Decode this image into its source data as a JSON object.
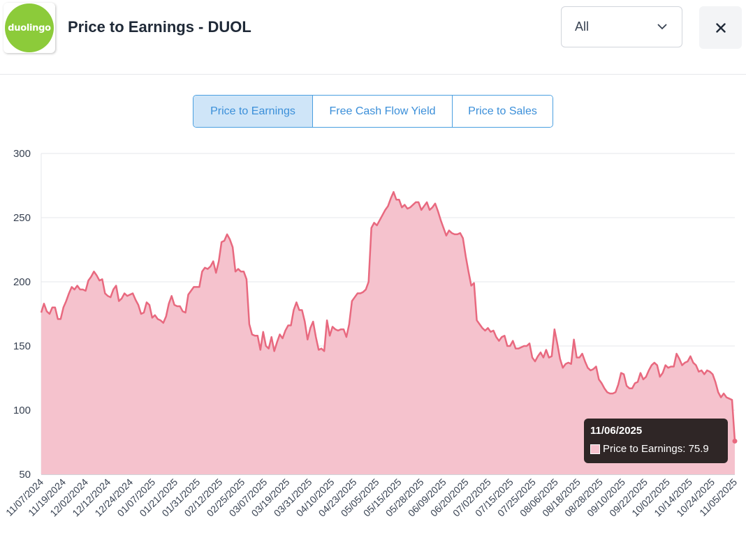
{
  "header": {
    "logo_text": "duolingo",
    "logo_color": "#8ccb3a",
    "title": "Price to Earnings - DUOL",
    "range_select": {
      "value": "All"
    }
  },
  "tabs": [
    {
      "label": "Price to Earnings",
      "active": true
    },
    {
      "label": "Free Cash Flow Yield",
      "active": false
    },
    {
      "label": "Price to Sales",
      "active": false
    }
  ],
  "tooltip": {
    "date": "11/06/2025",
    "series_label": "Price to Earnings",
    "value": "75.9"
  },
  "chart_data": {
    "type": "area",
    "title": "",
    "xlabel": "",
    "ylabel": "",
    "ylim": [
      50,
      300
    ],
    "yticks": [
      50,
      100,
      150,
      200,
      250,
      300
    ],
    "grid": true,
    "legend": "none",
    "line_color": "#e8697f",
    "fill_color": "#f5c2cd",
    "tick_labels": [
      "11/07/2024",
      "11/19/2024",
      "12/02/2024",
      "12/12/2024",
      "12/24/2024",
      "01/07/2025",
      "01/21/2025",
      "01/31/2025",
      "02/12/2025",
      "02/25/2025",
      "03/07/2025",
      "03/19/2025",
      "03/31/2025",
      "04/10/2025",
      "04/23/2025",
      "05/05/2025",
      "05/15/2025",
      "05/28/2025",
      "06/09/2025",
      "06/20/2025",
      "07/02/2025",
      "07/15/2025",
      "07/25/2025",
      "08/06/2025",
      "08/18/2025",
      "08/28/2025",
      "09/10/2025",
      "09/22/2025",
      "10/02/2025",
      "10/14/2025",
      "10/24/2025",
      "11/05/2025"
    ],
    "series": [
      {
        "values": [
          176,
          183,
          177,
          175,
          180,
          180,
          171,
          171,
          180,
          185,
          191,
          196,
          194,
          197,
          194,
          194,
          193,
          201,
          204,
          208,
          205,
          201,
          202,
          191,
          189,
          188,
          194,
          197,
          185,
          187,
          191,
          189,
          190,
          191,
          186,
          182,
          175,
          176,
          184,
          182,
          172,
          174,
          171,
          170,
          168,
          173,
          183,
          189,
          182,
          181,
          181,
          177,
          176,
          190,
          193,
          196,
          196,
          196,
          208,
          211,
          210,
          212,
          216,
          207,
          216,
          231,
          232,
          237,
          233,
          227,
          208,
          210,
          208,
          208,
          202,
          167,
          159,
          158,
          158,
          147,
          161,
          150,
          148,
          157,
          146,
          153,
          159,
          156,
          162,
          166,
          166,
          178,
          184,
          178,
          178,
          169,
          155,
          164,
          169,
          157,
          147,
          148,
          146,
          170,
          158,
          165,
          163,
          162,
          163,
          163,
          157,
          167,
          185,
          188,
          191,
          191,
          192,
          194,
          200,
          242,
          246,
          244,
          248,
          252,
          256,
          259,
          265,
          270,
          264,
          264,
          258,
          260,
          257,
          258,
          260,
          262,
          262,
          256,
          259,
          262,
          256,
          258,
          261,
          255,
          248,
          242,
          236,
          240,
          238,
          237,
          237,
          238,
          234,
          220,
          208,
          197,
          199,
          170,
          167,
          164,
          162,
          164,
          161,
          162,
          157,
          154,
          157,
          158,
          150,
          150,
          154,
          148,
          148,
          149,
          150,
          150,
          152,
          141,
          138,
          142,
          145,
          141,
          147,
          141,
          142,
          163,
          152,
          140,
          133,
          136,
          137,
          136,
          155,
          141,
          141,
          144,
          138,
          133,
          131,
          132,
          134,
          124,
          121,
          117,
          114,
          113,
          113,
          114,
          120,
          129,
          128,
          119,
          117,
          117,
          121,
          122,
          129,
          124,
          126,
          131,
          135,
          137,
          135,
          126,
          129,
          135,
          133,
          134,
          134,
          144,
          140,
          135,
          137,
          138,
          142,
          137,
          135,
          130,
          131,
          128,
          131,
          130,
          128,
          122,
          114,
          110,
          113,
          110,
          109,
          108,
          75.9
        ]
      }
    ]
  }
}
